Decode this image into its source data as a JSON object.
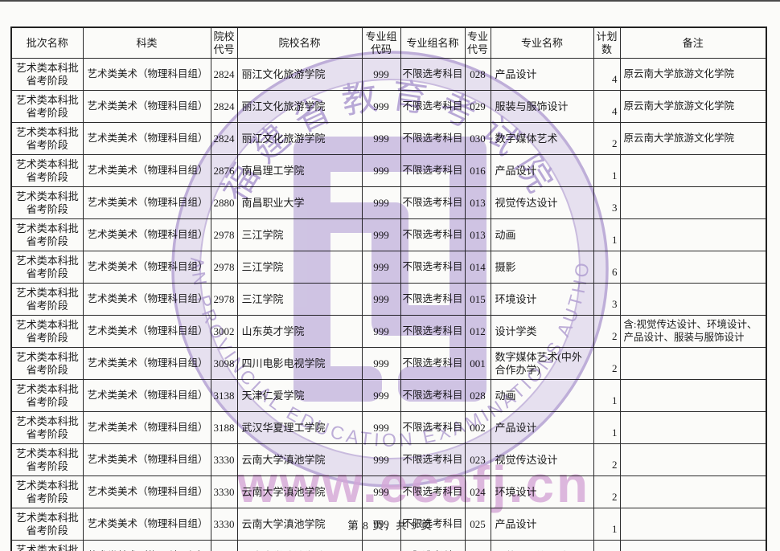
{
  "page": {
    "footer": "第 8 页，共 9 页"
  },
  "table": {
    "columns": [
      "批次名称",
      "科类",
      "院校代号",
      "院校名称",
      "专业组代码",
      "专业组名称",
      "专业代号",
      "专业名称",
      "计划数",
      "备注"
    ],
    "column_keys": [
      "batch",
      "category",
      "school_code",
      "school_name",
      "group_code",
      "group_name",
      "major_code",
      "major_name",
      "plan",
      "remark"
    ],
    "rows": [
      {
        "batch": "艺术类本科批省考阶段",
        "category": "艺术类美术（物理科目组）",
        "school_code": "2824",
        "school_name": "丽江文化旅游学院",
        "group_code": "999",
        "group_name": "不限选考科目",
        "major_code": "028",
        "major_name": "产品设计",
        "plan": "4",
        "remark": "原云南大学旅游文化学院"
      },
      {
        "batch": "艺术类本科批省考阶段",
        "category": "艺术类美术（物理科目组）",
        "school_code": "2824",
        "school_name": "丽江文化旅游学院",
        "group_code": "999",
        "group_name": "不限选考科目",
        "major_code": "029",
        "major_name": "服装与服饰设计",
        "plan": "4",
        "remark": "原云南大学旅游文化学院"
      },
      {
        "batch": "艺术类本科批省考阶段",
        "category": "艺术类美术（物理科目组）",
        "school_code": "2824",
        "school_name": "丽江文化旅游学院",
        "group_code": "999",
        "group_name": "不限选考科目",
        "major_code": "030",
        "major_name": "数字媒体艺术",
        "plan": "2",
        "remark": "原云南大学旅游文化学院"
      },
      {
        "batch": "艺术类本科批省考阶段",
        "category": "艺术类美术（物理科目组）",
        "school_code": "2876",
        "school_name": "南昌理工学院",
        "group_code": "999",
        "group_name": "不限选考科目",
        "major_code": "016",
        "major_name": "产品设计",
        "plan": "1",
        "remark": ""
      },
      {
        "batch": "艺术类本科批省考阶段",
        "category": "艺术类美术（物理科目组）",
        "school_code": "2880",
        "school_name": "南昌职业大学",
        "group_code": "999",
        "group_name": "不限选考科目",
        "major_code": "013",
        "major_name": "视觉传达设计",
        "plan": "3",
        "remark": ""
      },
      {
        "batch": "艺术类本科批省考阶段",
        "category": "艺术类美术（物理科目组）",
        "school_code": "2978",
        "school_name": "三江学院",
        "group_code": "999",
        "group_name": "不限选考科目",
        "major_code": "013",
        "major_name": "动画",
        "plan": "1",
        "remark": ""
      },
      {
        "batch": "艺术类本科批省考阶段",
        "category": "艺术类美术（物理科目组）",
        "school_code": "2978",
        "school_name": "三江学院",
        "group_code": "999",
        "group_name": "不限选考科目",
        "major_code": "014",
        "major_name": "摄影",
        "plan": "6",
        "remark": ""
      },
      {
        "batch": "艺术类本科批省考阶段",
        "category": "艺术类美术（物理科目组）",
        "school_code": "2978",
        "school_name": "三江学院",
        "group_code": "999",
        "group_name": "不限选考科目",
        "major_code": "015",
        "major_name": "环境设计",
        "plan": "3",
        "remark": ""
      },
      {
        "batch": "艺术类本科批省考阶段",
        "category": "艺术类美术（物理科目组）",
        "school_code": "3002",
        "school_name": "山东英才学院",
        "group_code": "999",
        "group_name": "不限选考科目",
        "major_code": "012",
        "major_name": "设计学类",
        "plan": "2",
        "remark": "含:视觉传达设计、环境设计、产品设计、服装与服饰设计"
      },
      {
        "batch": "艺术类本科批省考阶段",
        "category": "艺术类美术（物理科目组）",
        "school_code": "3098",
        "school_name": "四川电影电视学院",
        "group_code": "999",
        "group_name": "不限选考科目",
        "major_code": "001",
        "major_name": "数字媒体艺术(中外合作办学)",
        "plan": "2",
        "remark": ""
      },
      {
        "batch": "艺术类本科批省考阶段",
        "category": "艺术类美术（物理科目组）",
        "school_code": "3138",
        "school_name": "天津仁爱学院",
        "group_code": "999",
        "group_name": "不限选考科目",
        "major_code": "028",
        "major_name": "动画",
        "plan": "1",
        "remark": ""
      },
      {
        "batch": "艺术类本科批省考阶段",
        "category": "艺术类美术（物理科目组）",
        "school_code": "3188",
        "school_name": "武汉华夏理工学院",
        "group_code": "999",
        "group_name": "不限选考科目",
        "major_code": "002",
        "major_name": "产品设计",
        "plan": "1",
        "remark": ""
      },
      {
        "batch": "艺术类本科批省考阶段",
        "category": "艺术类美术（物理科目组）",
        "school_code": "3330",
        "school_name": "云南大学滇池学院",
        "group_code": "999",
        "group_name": "不限选考科目",
        "major_code": "023",
        "major_name": "视觉传达设计",
        "plan": "2",
        "remark": ""
      },
      {
        "batch": "艺术类本科批省考阶段",
        "category": "艺术类美术（物理科目组）",
        "school_code": "3330",
        "school_name": "云南大学滇池学院",
        "group_code": "999",
        "group_name": "不限选考科目",
        "major_code": "024",
        "major_name": "环境设计",
        "plan": "2",
        "remark": ""
      },
      {
        "batch": "艺术类本科批省考阶段",
        "category": "艺术类美术（物理科目组）",
        "school_code": "3330",
        "school_name": "云南大学滇池学院",
        "group_code": "999",
        "group_name": "不限选考科目",
        "major_code": "025",
        "major_name": "产品设计",
        "plan": "1",
        "remark": ""
      },
      {
        "batch": "艺术类本科批省考阶段",
        "category": "艺术类美术（物理科目组）",
        "school_code": "3330",
        "school_name": "云南大学滇池学院",
        "group_code": "999",
        "group_name": "不限选考科目",
        "major_code": "026",
        "major_name": "服装与服饰设计",
        "plan": "1",
        "remark": ""
      }
    ]
  },
  "watermark": {
    "seal_cn": "福建省教育考试院",
    "seal_en": "FUJIAN PROVINCIAL EDUCATION EXAMINATIONS AUTHORITY",
    "url": "www.ecafj.cn",
    "seal_color": "#b6a3d8",
    "emblem_color": "#cdbfe6",
    "url_color": "#d9a9dd"
  }
}
